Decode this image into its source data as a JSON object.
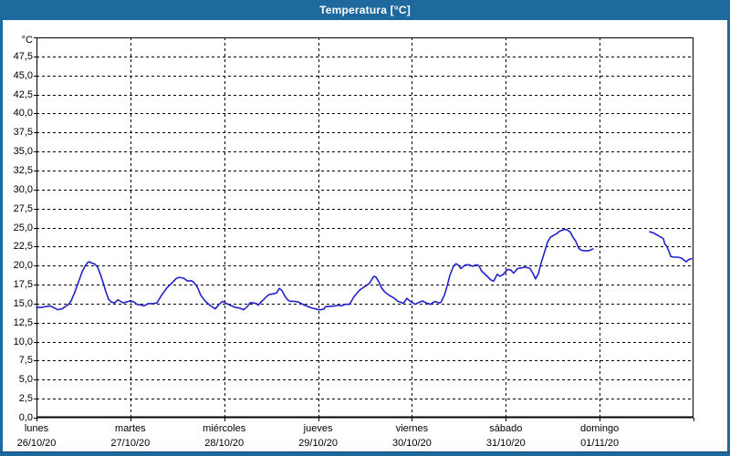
{
  "window": {
    "title": "Temperatura [°C]",
    "title_bar_color": "#1e6a9e",
    "frame_color": "#1e6a9e"
  },
  "chart": {
    "background_color": "#ffffff",
    "grid_color": "#000000",
    "line_color": "#2222cc",
    "y_axis": {
      "unit": "°C",
      "tick_labels": [
        "47,5",
        "45,0",
        "42,5",
        "40,0",
        "37,5",
        "35,0",
        "32,5",
        "30,0",
        "27,5",
        "25,0",
        "22,5",
        "20,0",
        "17,5",
        "15,0",
        "12,5",
        "10,0",
        "7,5",
        "5,0",
        "2,5",
        "0,0"
      ]
    },
    "x_axis": {
      "days": [
        {
          "name": "lunes",
          "date": "26/10/20"
        },
        {
          "name": "martes",
          "date": "27/10/20"
        },
        {
          "name": "miércoles",
          "date": "28/10/20"
        },
        {
          "name": "jueves",
          "date": "29/10/20"
        },
        {
          "name": "viernes",
          "date": "30/10/20"
        },
        {
          "name": "sábado",
          "date": "31/10/20"
        },
        {
          "name": "domingo",
          "date": "01/11/20"
        }
      ]
    }
  },
  "chart_data": {
    "type": "line",
    "title": "Temperatura [°C]",
    "ylabel": "°C",
    "ylim": [
      0,
      50
    ],
    "y_tick_step": 2.5,
    "grid": "dashed",
    "legend": "none",
    "x_unit": "hours from lunes 26/10/20 00:00",
    "xlim": [
      0,
      168
    ],
    "x_day_boundaries_hours": [
      0,
      24,
      48,
      72,
      96,
      120,
      144,
      168
    ],
    "data_gap_hours": [
      142.3,
      156.8
    ],
    "series": [
      {
        "name": "Temperatura",
        "color": "#2222cc",
        "segments": [
          [
            [
              0,
              14.5
            ],
            [
              1.2,
              14.5
            ],
            [
              2.3,
              14.6
            ],
            [
              3.5,
              14.7
            ],
            [
              4.7,
              14.4
            ],
            [
              5.4,
              14.2
            ],
            [
              6.5,
              14.3
            ],
            [
              8.2,
              14.9
            ],
            [
              8.9,
              15.4
            ],
            [
              9.8,
              16.5
            ],
            [
              10.7,
              17.8
            ],
            [
              11.7,
              19.2
            ],
            [
              12.4,
              19.9
            ],
            [
              13.1,
              20.4
            ],
            [
              13.5,
              20.5
            ],
            [
              14.2,
              20.3
            ],
            [
              14.9,
              20.2
            ],
            [
              15.6,
              19.8
            ],
            [
              16.3,
              18.9
            ],
            [
              17,
              17.8
            ],
            [
              17.7,
              16.6
            ],
            [
              18.4,
              15.6
            ],
            [
              19.1,
              15.2
            ],
            [
              20,
              15.1
            ],
            [
              20.8,
              15.5
            ],
            [
              21.5,
              15.3
            ],
            [
              22.2,
              15.1
            ],
            [
              22.9,
              15.2
            ],
            [
              23.6,
              15.3
            ],
            [
              24,
              15.4
            ],
            [
              25,
              15.2
            ],
            [
              25.7,
              14.9
            ],
            [
              26.8,
              14.8
            ],
            [
              27.5,
              14.7
            ],
            [
              28.5,
              15.0
            ],
            [
              29.9,
              15.0
            ],
            [
              30.8,
              15.1
            ],
            [
              32,
              16.1
            ],
            [
              33.4,
              17.1
            ],
            [
              35,
              17.9
            ],
            [
              35.7,
              18.3
            ],
            [
              36.6,
              18.45
            ],
            [
              37.8,
              18.3
            ],
            [
              38.5,
              18.0
            ],
            [
              39.7,
              18.0
            ],
            [
              40.4,
              17.7
            ],
            [
              41.2,
              17.1
            ],
            [
              42,
              16.1
            ],
            [
              43.2,
              15.3
            ],
            [
              44.3,
              14.8
            ],
            [
              45.7,
              14.3
            ],
            [
              46.7,
              14.9
            ],
            [
              47.6,
              15.3
            ],
            [
              48.3,
              15.1
            ],
            [
              49.5,
              14.8
            ],
            [
              50.9,
              14.5
            ],
            [
              52,
              14.4
            ],
            [
              53,
              14.2
            ],
            [
              53.9,
              14.6
            ],
            [
              54.6,
              15.1
            ],
            [
              55.5,
              15.1
            ],
            [
              56.2,
              15.0
            ],
            [
              56.7,
              14.8
            ],
            [
              57.6,
              15.3
            ],
            [
              58.6,
              15.8
            ],
            [
              59.5,
              16.2
            ],
            [
              60.7,
              16.3
            ],
            [
              61.4,
              16.4
            ],
            [
              62.1,
              17.0
            ],
            [
              62.8,
              16.7
            ],
            [
              63.5,
              16.0
            ],
            [
              64.2,
              15.5
            ],
            [
              64.9,
              15.3
            ],
            [
              66,
              15.3
            ],
            [
              67,
              15.2
            ],
            [
              67.7,
              15.0
            ],
            [
              68.6,
              14.8
            ],
            [
              69.5,
              14.6
            ],
            [
              70.5,
              14.4
            ],
            [
              71.4,
              14.3
            ],
            [
              72.1,
              14.2
            ],
            [
              72.8,
              14.2
            ],
            [
              73.5,
              14.3
            ],
            [
              74,
              14.6
            ],
            [
              75.1,
              14.65
            ],
            [
              76.5,
              14.7
            ],
            [
              77,
              14.8
            ],
            [
              77.9,
              14.7
            ],
            [
              78.9,
              14.9
            ],
            [
              80,
              14.9
            ],
            [
              80.5,
              15.3
            ],
            [
              81.2,
              15.9
            ],
            [
              82.1,
              16.5
            ],
            [
              82.8,
              16.85
            ],
            [
              84,
              17.25
            ],
            [
              85.2,
              17.7
            ],
            [
              85.9,
              18.3
            ],
            [
              86.3,
              18.6
            ],
            [
              86.8,
              18.5
            ],
            [
              87.5,
              17.9
            ],
            [
              88.2,
              17.1
            ],
            [
              89.1,
              16.5
            ],
            [
              90.3,
              16.05
            ],
            [
              91.5,
              15.7
            ],
            [
              92.4,
              15.3
            ],
            [
              93.3,
              15.15
            ],
            [
              93.8,
              15.0
            ],
            [
              94.7,
              15.7
            ],
            [
              95.7,
              15.25
            ],
            [
              96.1,
              15.15
            ],
            [
              96.8,
              14.9
            ],
            [
              97.5,
              15.1
            ],
            [
              98.7,
              15.35
            ],
            [
              99.6,
              15.1
            ],
            [
              100.8,
              14.9
            ],
            [
              101.5,
              15.2
            ],
            [
              102.2,
              15.25
            ],
            [
              102.9,
              15.1
            ],
            [
              103.4,
              15.15
            ],
            [
              104.3,
              16.1
            ],
            [
              105,
              17.3
            ],
            [
              105.7,
              18.7
            ],
            [
              106.6,
              19.9
            ],
            [
              107.3,
              20.25
            ],
            [
              108,
              20.0
            ],
            [
              108.5,
              19.6
            ],
            [
              109.2,
              19.9
            ],
            [
              109.7,
              20.1
            ],
            [
              110.6,
              20.1
            ],
            [
              111.5,
              19.9
            ],
            [
              112.4,
              20.1
            ],
            [
              113.1,
              20.0
            ],
            [
              113.8,
              19.3
            ],
            [
              115,
              18.7
            ],
            [
              116.2,
              18.1
            ],
            [
              116.9,
              17.95
            ],
            [
              117.8,
              18.85
            ],
            [
              118.5,
              18.6
            ],
            [
              119.5,
              18.9
            ],
            [
              119.9,
              19.2
            ],
            [
              120.6,
              19.5
            ],
            [
              121.3,
              19.4
            ],
            [
              122,
              19.0
            ],
            [
              123,
              19.6
            ],
            [
              124.1,
              19.7
            ],
            [
              124.8,
              19.8
            ],
            [
              125.8,
              19.7
            ],
            [
              126.2,
              19.6
            ],
            [
              126.9,
              19.0
            ],
            [
              127.6,
              18.25
            ],
            [
              128.3,
              18.9
            ],
            [
              129,
              20.3
            ],
            [
              130,
              21.9
            ],
            [
              130.7,
              23.1
            ],
            [
              131.4,
              23.7
            ],
            [
              132.3,
              24.0
            ],
            [
              133,
              24.2
            ],
            [
              133.7,
              24.5
            ],
            [
              134.6,
              24.7
            ],
            [
              135.5,
              24.75
            ],
            [
              136.5,
              24.4
            ],
            [
              137.2,
              23.7
            ],
            [
              137.9,
              23.2
            ],
            [
              138.6,
              22.3
            ],
            [
              139.3,
              22.0
            ],
            [
              140.2,
              21.95
            ],
            [
              141.2,
              21.95
            ],
            [
              141.9,
              22.1
            ],
            [
              142.3,
              22.2
            ]
          ],
          [
            [
              156.8,
              24.45
            ],
            [
              157.7,
              24.3
            ],
            [
              158.4,
              24.1
            ],
            [
              159.1,
              23.9
            ],
            [
              159.8,
              23.7
            ],
            [
              160.3,
              23.5
            ],
            [
              160.7,
              22.8
            ],
            [
              161.2,
              22.5
            ],
            [
              161.7,
              21.9
            ],
            [
              162.2,
              21.2
            ],
            [
              163.1,
              21.1
            ],
            [
              164,
              21.1
            ],
            [
              164.9,
              21.0
            ],
            [
              165.6,
              20.7
            ],
            [
              166.1,
              20.5
            ],
            [
              166.8,
              20.8
            ],
            [
              167.5,
              20.9
            ]
          ]
        ]
      }
    ]
  }
}
